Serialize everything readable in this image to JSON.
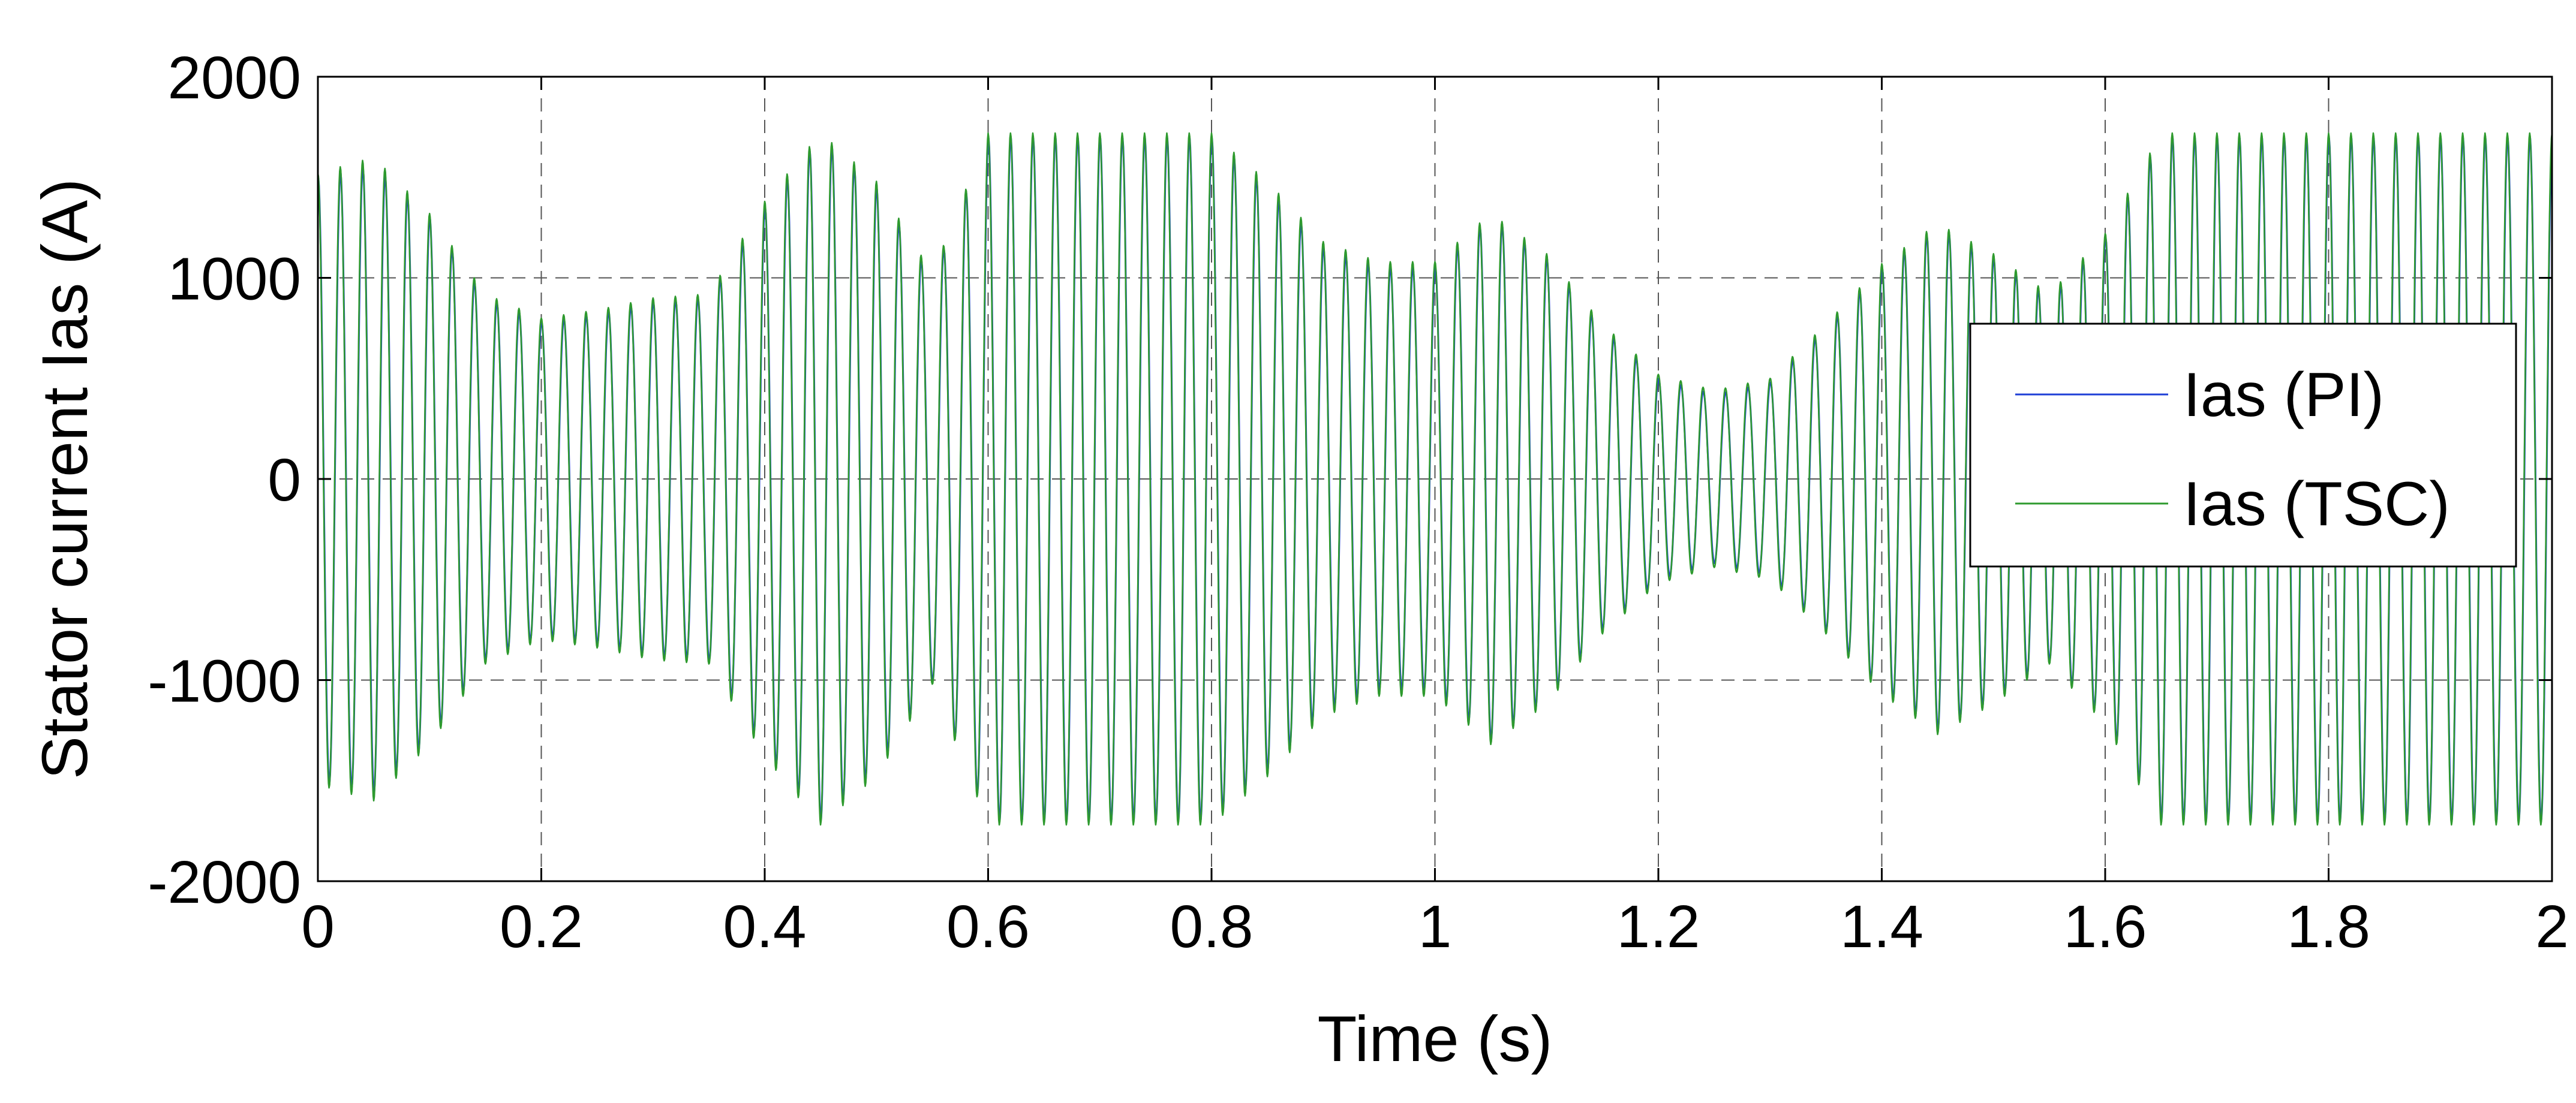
{
  "chart_data": {
    "type": "line",
    "xlabel": "Time (s)",
    "ylabel": "Stator current Ias (A)",
    "xlim": [
      0,
      2
    ],
    "ylim": [
      -2000,
      2000
    ],
    "x_ticks": [
      "0",
      "0.2",
      "0.4",
      "0.6",
      "0.8",
      "1",
      "1.2",
      "1.4",
      "1.6",
      "1.8",
      "2"
    ],
    "y_ticks": [
      "2000",
      "1000",
      "0",
      "-1000",
      "-2000"
    ],
    "grid": true,
    "legend_position": "right",
    "signal_frequency_hz": 50,
    "series": [
      {
        "name": "Ias (PI)",
        "color": "#1f3fd6",
        "envelope": {
          "t": [
            0,
            0.05,
            0.1,
            0.15,
            0.2,
            0.25,
            0.3,
            0.35,
            0.4,
            0.45,
            0.5,
            0.55,
            0.6,
            0.65,
            0.7,
            0.75,
            0.8,
            0.85,
            0.9,
            0.95,
            1.0,
            1.05,
            1.1,
            1.15,
            1.2,
            1.25,
            1.3,
            1.35,
            1.4,
            1.45,
            1.5,
            1.55,
            1.6,
            1.65,
            1.7,
            1.75,
            1.8,
            1.85,
            1.9,
            1.95,
            2.0
          ],
          "amplitude": [
            1500,
            1560,
            1300,
            900,
            780,
            820,
            880,
            900,
            1350,
            1700,
            1450,
            1000,
            1700,
            1700,
            1700,
            1700,
            1700,
            1450,
            1150,
            1050,
            1050,
            1300,
            1100,
            750,
            500,
            420,
            480,
            750,
            1050,
            1250,
            1100,
            900,
            1200,
            1700,
            1700,
            1700,
            1700,
            1700,
            1700,
            1700,
            1700
          ]
        }
      },
      {
        "name": "Ias (TSC)",
        "color": "#2e9a2e",
        "envelope": {
          "t": [
            0,
            0.05,
            0.1,
            0.15,
            0.2,
            0.25,
            0.3,
            0.35,
            0.4,
            0.45,
            0.5,
            0.55,
            0.6,
            0.65,
            0.7,
            0.75,
            0.8,
            0.85,
            0.9,
            0.95,
            1.0,
            1.05,
            1.1,
            1.15,
            1.2,
            1.25,
            1.3,
            1.35,
            1.4,
            1.45,
            1.5,
            1.55,
            1.6,
            1.65,
            1.7,
            1.75,
            1.8,
            1.85,
            1.9,
            1.95,
            2.0
          ],
          "amplitude": [
            1520,
            1600,
            1320,
            920,
            800,
            840,
            900,
            920,
            1380,
            1720,
            1480,
            1020,
            1720,
            1720,
            1720,
            1720,
            1720,
            1480,
            1180,
            1080,
            1080,
            1320,
            1120,
            770,
            520,
            440,
            500,
            770,
            1070,
            1270,
            1120,
            920,
            1220,
            1720,
            1720,
            1720,
            1720,
            1720,
            1720,
            1720,
            1720
          ]
        }
      }
    ]
  }
}
